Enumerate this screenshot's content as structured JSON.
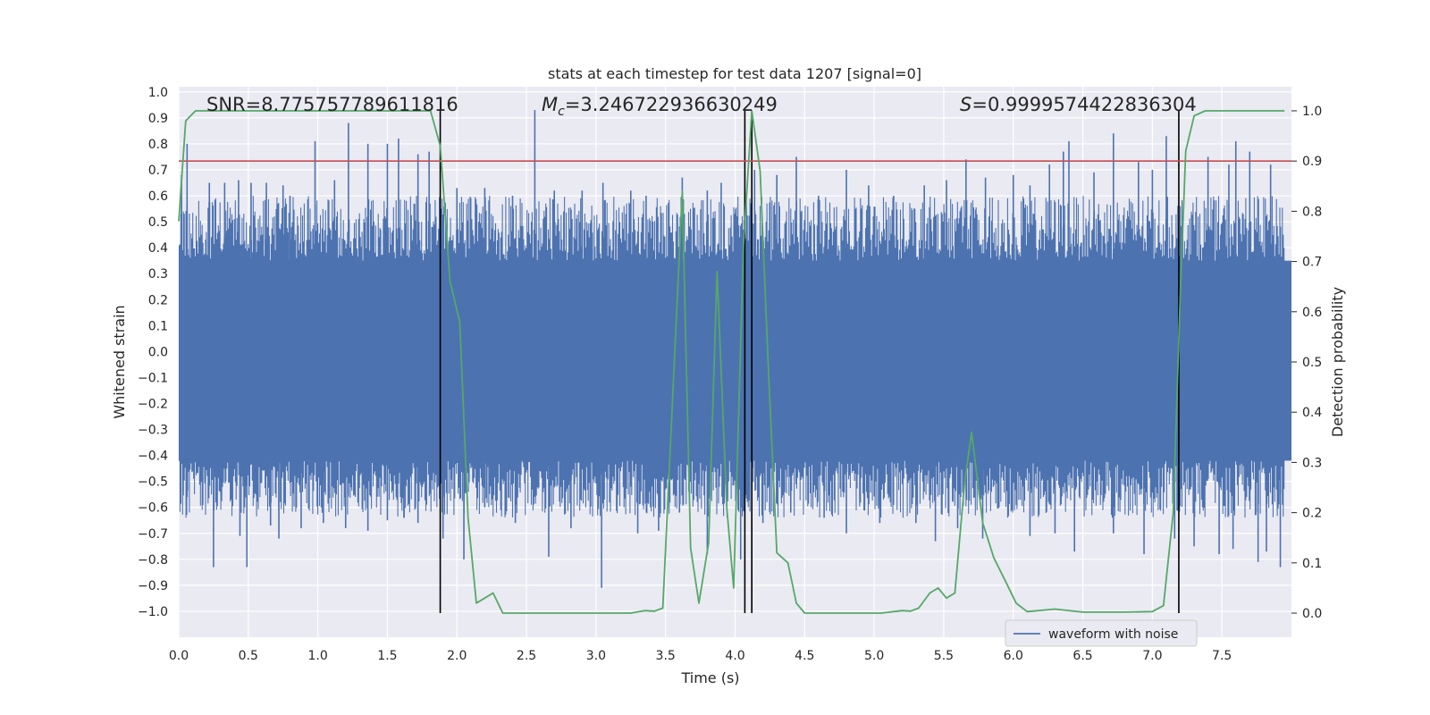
{
  "chart_data": {
    "type": "line",
    "title": "stats at each timestep for test data 1207 [signal=0]",
    "xlabel": "Time (s)",
    "ylabel": "Whitened strain",
    "y2label": "Detection probability",
    "xlim": [
      0.0,
      8.0
    ],
    "ylim": [
      -1.1,
      1.02
    ],
    "y2lim": [
      -0.048,
      1.048
    ],
    "xticks": [
      "0.0",
      "0.5",
      "1.0",
      "1.5",
      "2.0",
      "2.5",
      "3.0",
      "3.5",
      "4.0",
      "4.5",
      "5.0",
      "5.5",
      "6.0",
      "6.5",
      "7.0",
      "7.5"
    ],
    "yticks": [
      "1.0",
      "0.9",
      "0.8",
      "0.7",
      "0.6",
      "0.5",
      "0.4",
      "0.3",
      "0.2",
      "0.1",
      "0.0",
      "−0.1",
      "−0.2",
      "−0.3",
      "−0.4",
      "−0.5",
      "−0.6",
      "−0.7",
      "−0.8",
      "−0.9",
      "−1.0"
    ],
    "y2ticks": [
      "1.0",
      "0.9",
      "0.8",
      "0.7",
      "0.6",
      "0.5",
      "0.4",
      "0.3",
      "0.2",
      "0.1",
      "0.0"
    ],
    "grid": true,
    "legend": {
      "placement": "lower-right",
      "entries": [
        "waveform with noise"
      ]
    },
    "annotations": {
      "snr": "SNR=8.775757789611816",
      "mc_symbol": "M",
      "mc_sub": "c",
      "mc_value": "=3.246722936630249",
      "s_symbol": "S",
      "s_value": "=0.9999574422836304"
    },
    "threshold": {
      "value": 0.9,
      "axis": "right",
      "color": "#c44e52"
    },
    "vertical_lines": [
      1.88,
      4.07,
      4.12,
      7.19
    ],
    "series": [
      {
        "name": "waveform with noise",
        "axis": "left",
        "color": "#4c72b0",
        "band_lo": -0.42,
        "band_hi": 0.35,
        "peaks_top": [
          {
            "x": 0.02,
            "y": 0.68
          },
          {
            "x": 0.06,
            "y": 0.8
          },
          {
            "x": 0.22,
            "y": 0.65
          },
          {
            "x": 0.33,
            "y": 0.65
          },
          {
            "x": 0.43,
            "y": 0.66
          },
          {
            "x": 0.52,
            "y": 0.65
          },
          {
            "x": 0.63,
            "y": 0.65
          },
          {
            "x": 0.75,
            "y": 0.64
          },
          {
            "x": 0.8,
            "y": 0.6
          },
          {
            "x": 0.98,
            "y": 0.81
          },
          {
            "x": 1.12,
            "y": 0.66
          },
          {
            "x": 1.22,
            "y": 0.88
          },
          {
            "x": 1.36,
            "y": 0.8
          },
          {
            "x": 1.5,
            "y": 0.8
          },
          {
            "x": 1.58,
            "y": 0.82
          },
          {
            "x": 1.72,
            "y": 0.76
          },
          {
            "x": 1.8,
            "y": 0.77
          },
          {
            "x": 2.0,
            "y": 0.63
          },
          {
            "x": 2.2,
            "y": 0.63
          },
          {
            "x": 2.4,
            "y": 0.6
          },
          {
            "x": 2.56,
            "y": 0.93
          },
          {
            "x": 2.7,
            "y": 0.62
          },
          {
            "x": 2.9,
            "y": 0.62
          },
          {
            "x": 3.05,
            "y": 0.65
          },
          {
            "x": 3.25,
            "y": 0.62
          },
          {
            "x": 3.36,
            "y": 0.6
          },
          {
            "x": 3.62,
            "y": 0.67
          },
          {
            "x": 3.8,
            "y": 0.62
          },
          {
            "x": 3.9,
            "y": 0.65
          },
          {
            "x": 4.14,
            "y": 0.7
          },
          {
            "x": 4.3,
            "y": 0.68
          },
          {
            "x": 4.44,
            "y": 0.75
          },
          {
            "x": 4.6,
            "y": 0.6
          },
          {
            "x": 4.8,
            "y": 0.7
          },
          {
            "x": 4.96,
            "y": 0.64
          },
          {
            "x": 5.14,
            "y": 0.6
          },
          {
            "x": 5.36,
            "y": 0.64
          },
          {
            "x": 5.52,
            "y": 0.66
          },
          {
            "x": 5.66,
            "y": 0.74
          },
          {
            "x": 5.8,
            "y": 0.67
          },
          {
            "x": 6.0,
            "y": 0.68
          },
          {
            "x": 6.12,
            "y": 0.64
          },
          {
            "x": 6.26,
            "y": 0.72
          },
          {
            "x": 6.36,
            "y": 0.77
          },
          {
            "x": 6.4,
            "y": 0.81
          },
          {
            "x": 6.58,
            "y": 0.69
          },
          {
            "x": 6.72,
            "y": 0.84
          },
          {
            "x": 6.9,
            "y": 0.73
          },
          {
            "x": 7.0,
            "y": 0.7
          },
          {
            "x": 7.1,
            "y": 0.83
          },
          {
            "x": 7.4,
            "y": 0.75
          },
          {
            "x": 7.55,
            "y": 0.72
          },
          {
            "x": 7.6,
            "y": 0.81
          },
          {
            "x": 7.7,
            "y": 0.77
          },
          {
            "x": 7.85,
            "y": 0.72
          }
        ],
        "peaks_bottom": [
          {
            "x": 0.06,
            "y": -0.56
          },
          {
            "x": 0.25,
            "y": -0.83
          },
          {
            "x": 0.44,
            "y": -0.71
          },
          {
            "x": 0.49,
            "y": -0.83
          },
          {
            "x": 0.66,
            "y": -0.67
          },
          {
            "x": 0.72,
            "y": -0.72
          },
          {
            "x": 0.88,
            "y": -0.68
          },
          {
            "x": 1.04,
            "y": -0.66
          },
          {
            "x": 1.2,
            "y": -0.68
          },
          {
            "x": 1.36,
            "y": -0.69
          },
          {
            "x": 1.5,
            "y": -0.65
          },
          {
            "x": 1.62,
            "y": -0.64
          },
          {
            "x": 1.72,
            "y": -0.66
          },
          {
            "x": 1.9,
            "y": -0.72
          },
          {
            "x": 2.05,
            "y": -0.8
          },
          {
            "x": 2.2,
            "y": -0.6
          },
          {
            "x": 2.42,
            "y": -0.66
          },
          {
            "x": 2.66,
            "y": -0.79
          },
          {
            "x": 2.82,
            "y": -0.68
          },
          {
            "x": 3.04,
            "y": -0.91
          },
          {
            "x": 3.3,
            "y": -0.7
          },
          {
            "x": 3.45,
            "y": -0.69
          },
          {
            "x": 3.6,
            "y": -0.62
          },
          {
            "x": 3.8,
            "y": -0.78
          },
          {
            "x": 4.04,
            "y": -0.8
          },
          {
            "x": 4.2,
            "y": -0.66
          },
          {
            "x": 4.4,
            "y": -0.62
          },
          {
            "x": 4.64,
            "y": -0.64
          },
          {
            "x": 4.8,
            "y": -0.7
          },
          {
            "x": 5.04,
            "y": -0.66
          },
          {
            "x": 5.3,
            "y": -0.66
          },
          {
            "x": 5.44,
            "y": -0.73
          },
          {
            "x": 5.6,
            "y": -0.68
          },
          {
            "x": 5.78,
            "y": -0.72
          },
          {
            "x": 6.12,
            "y": -0.71
          },
          {
            "x": 6.3,
            "y": -0.7
          },
          {
            "x": 6.44,
            "y": -0.77
          },
          {
            "x": 6.72,
            "y": -0.7
          },
          {
            "x": 6.94,
            "y": -0.78
          },
          {
            "x": 7.16,
            "y": -0.72
          },
          {
            "x": 7.3,
            "y": -0.75
          },
          {
            "x": 7.48,
            "y": -0.78
          },
          {
            "x": 7.58,
            "y": -0.76
          },
          {
            "x": 7.76,
            "y": -0.81
          },
          {
            "x": 7.82,
            "y": -0.77
          },
          {
            "x": 7.92,
            "y": -0.83
          }
        ]
      },
      {
        "name": "",
        "axis": "right",
        "color": "#55a868",
        "points": [
          [
            0.0,
            0.78
          ],
          [
            0.05,
            0.98
          ],
          [
            0.12,
            1.0
          ],
          [
            1.81,
            1.0
          ],
          [
            1.88,
            0.93
          ],
          [
            1.95,
            0.66
          ],
          [
            2.02,
            0.58
          ],
          [
            2.08,
            0.19
          ],
          [
            2.14,
            0.02
          ],
          [
            2.2,
            0.03
          ],
          [
            2.26,
            0.04
          ],
          [
            2.33,
            0.0
          ],
          [
            2.4,
            0.0
          ],
          [
            2.6,
            0.0
          ],
          [
            3.25,
            0.0
          ],
          [
            3.35,
            0.005
          ],
          [
            3.42,
            0.004
          ],
          [
            3.48,
            0.01
          ],
          [
            3.58,
            0.6
          ],
          [
            3.62,
            0.84
          ],
          [
            3.68,
            0.13
          ],
          [
            3.74,
            0.02
          ],
          [
            3.81,
            0.14
          ],
          [
            3.87,
            0.68
          ],
          [
            3.94,
            0.21
          ],
          [
            3.99,
            0.05
          ],
          [
            4.06,
            0.73
          ],
          [
            4.12,
            1.0
          ],
          [
            4.18,
            0.88
          ],
          [
            4.24,
            0.48
          ],
          [
            4.3,
            0.12
          ],
          [
            4.38,
            0.1
          ],
          [
            4.44,
            0.02
          ],
          [
            4.5,
            0.0
          ],
          [
            5.05,
            0.0
          ],
          [
            5.2,
            0.005
          ],
          [
            5.26,
            0.004
          ],
          [
            5.32,
            0.01
          ],
          [
            5.4,
            0.04
          ],
          [
            5.46,
            0.05
          ],
          [
            5.52,
            0.03
          ],
          [
            5.58,
            0.04
          ],
          [
            5.65,
            0.26
          ],
          [
            5.7,
            0.36
          ],
          [
            5.78,
            0.18
          ],
          [
            5.86,
            0.11
          ],
          [
            5.95,
            0.06
          ],
          [
            6.02,
            0.02
          ],
          [
            6.1,
            0.003
          ],
          [
            6.3,
            0.008
          ],
          [
            6.5,
            0.002
          ],
          [
            6.8,
            0.002
          ],
          [
            7.0,
            0.003
          ],
          [
            7.08,
            0.015
          ],
          [
            7.15,
            0.2
          ],
          [
            7.2,
            0.63
          ],
          [
            7.24,
            0.92
          ],
          [
            7.3,
            0.99
          ],
          [
            7.38,
            1.0
          ],
          [
            7.95,
            1.0
          ]
        ]
      }
    ]
  }
}
